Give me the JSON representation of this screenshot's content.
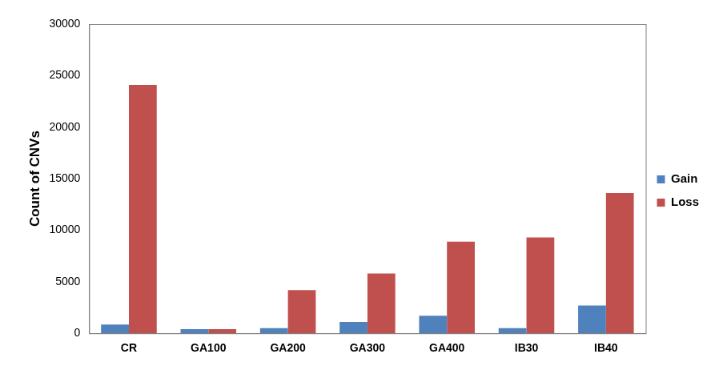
{
  "chart_data": {
    "type": "bar",
    "y_label": "Count of CNVs",
    "categories": [
      "CR",
      "GA100",
      "GA200",
      "GA300",
      "GA400",
      "IB30",
      "IB40"
    ],
    "series": [
      {
        "name": "Gain",
        "color": "#4f81bd",
        "values": [
          850,
          400,
          500,
          1100,
          1700,
          500,
          2700
        ]
      },
      {
        "name": "Loss",
        "color": "#c0504d",
        "values": [
          24100,
          400,
          4200,
          5800,
          8900,
          9300,
          13600
        ]
      }
    ],
    "ylim": [
      0,
      30000
    ],
    "yticks": [
      0,
      5000,
      10000,
      15000,
      20000,
      25000,
      30000
    ],
    "grid": false,
    "legend": "right"
  }
}
